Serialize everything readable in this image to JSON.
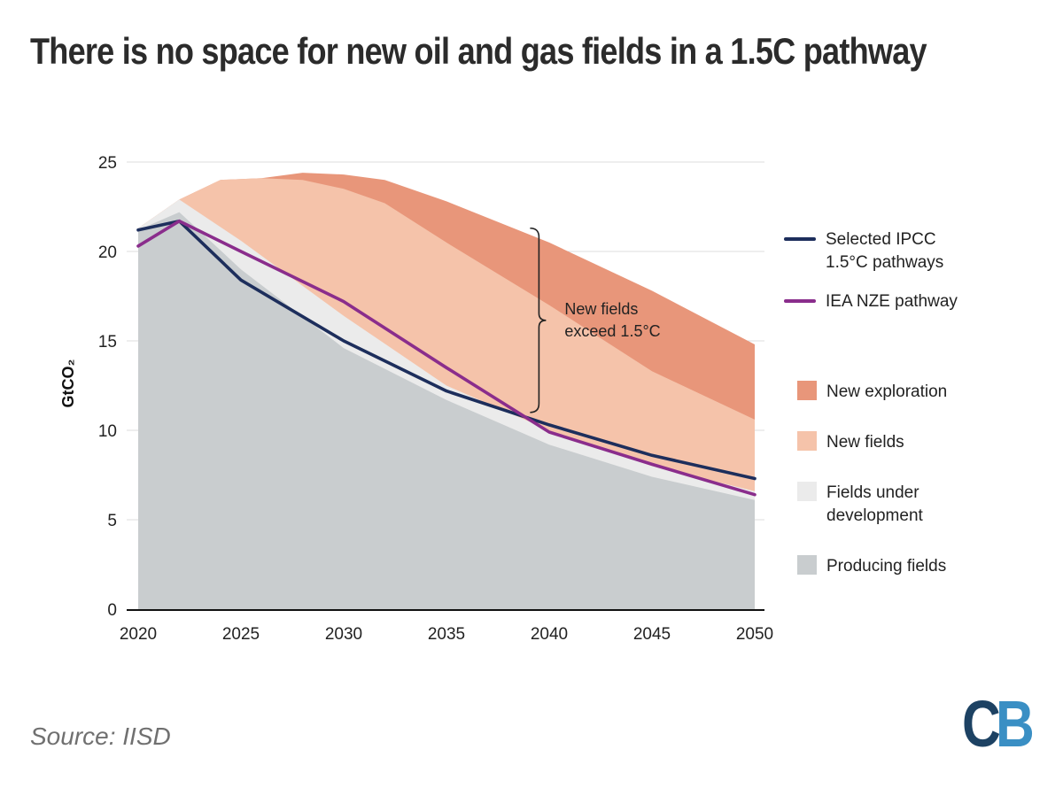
{
  "title": "There is no space for new oil and gas fields in a 1.5C pathway",
  "source": "Source: IISD",
  "logo": {
    "c": "C",
    "b": "B"
  },
  "annotation": {
    "line1": "New fields",
    "line2": "exceed 1.5°C"
  },
  "legend": {
    "ipcc": {
      "line1": "Selected IPCC",
      "line2": "1.5°C pathways",
      "color": "#1d2e5c"
    },
    "iea": {
      "line1": "IEA NZE pathway",
      "color": "#8a2d8c"
    },
    "new_exploration": {
      "label": "New exploration",
      "color": "#e8967a"
    },
    "new_fields": {
      "label": "New fields",
      "color": "#f5c3aa"
    },
    "fields_under_development": {
      "line1": "Fields under",
      "line2": "development",
      "color": "#ebebeb"
    },
    "producing_fields": {
      "label": "Producing fields",
      "color": "#c9cdcf"
    }
  },
  "chart_data": {
    "type": "area",
    "ylabel": "GtCO₂",
    "xlabel": "",
    "ylim": [
      0,
      25
    ],
    "xlim": [
      2020,
      2050
    ],
    "x_ticks": [
      "2020",
      "2025",
      "2030",
      "2035",
      "2040",
      "2045",
      "2050"
    ],
    "y_ticks": [
      "0",
      "5",
      "10",
      "15",
      "20",
      "25"
    ],
    "grid": "horizontal",
    "legend_position": "right",
    "stacked_areas": [
      {
        "name": "Producing fields",
        "color": "#c9cdcf",
        "x": [
          2020,
          2022,
          2025,
          2030,
          2035,
          2040,
          2045,
          2050
        ],
        "values": [
          21.2,
          22.2,
          19.0,
          14.6,
          11.7,
          9.2,
          7.4,
          6.1
        ]
      },
      {
        "name": "Fields under development",
        "color": "#ebebeb",
        "x": [
          2020,
          2022,
          2025,
          2030,
          2035,
          2040,
          2045,
          2050
        ],
        "values": [
          21.3,
          22.9,
          20.6,
          16.4,
          12.5,
          10.0,
          8.0,
          6.6
        ]
      },
      {
        "name": "New fields",
        "color": "#f5c3aa",
        "x": [
          2020,
          2022,
          2024,
          2026,
          2028,
          2030,
          2032,
          2035,
          2040,
          2045,
          2050
        ],
        "values": [
          21.3,
          22.9,
          24.0,
          24.1,
          24.0,
          23.5,
          22.7,
          20.5,
          17.0,
          13.3,
          10.6
        ]
      },
      {
        "name": "New exploration",
        "color": "#e8967a",
        "x": [
          2020,
          2022,
          2024,
          2026,
          2028,
          2030,
          2032,
          2035,
          2040,
          2045,
          2050
        ],
        "values": [
          21.3,
          22.9,
          24.0,
          24.1,
          24.4,
          24.3,
          24.0,
          22.8,
          20.5,
          17.8,
          14.8
        ]
      }
    ],
    "series": [
      {
        "name": "Selected IPCC 1.5°C pathways",
        "color": "#1d2e5c",
        "x": [
          2020,
          2022,
          2025,
          2030,
          2035,
          2040,
          2045,
          2050
        ],
        "values": [
          21.2,
          21.7,
          18.4,
          15.0,
          12.2,
          10.3,
          8.6,
          7.3
        ]
      },
      {
        "name": "IEA NZE pathway",
        "color": "#8a2d8c",
        "x": [
          2020,
          2022,
          2025,
          2030,
          2035,
          2040,
          2045,
          2050
        ],
        "values": [
          20.3,
          21.7,
          20.0,
          17.2,
          13.5,
          9.9,
          8.1,
          6.4
        ]
      }
    ],
    "bracket": {
      "x": 2039.5,
      "y_from": 11.0,
      "y_to": 21.3
    }
  }
}
